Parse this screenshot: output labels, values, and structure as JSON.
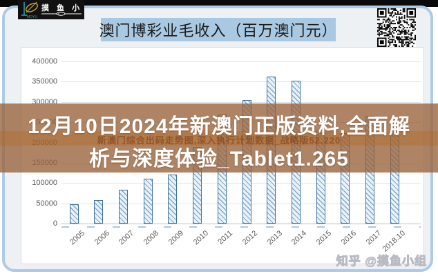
{
  "header": {
    "brand": {
      "name_spaced": "摸 鱼 小 组",
      "sub": "MOYU"
    },
    "title": "澳门博彩业毛收入（百万澳门元）"
  },
  "overlay": {
    "lines": [
      "12月10日2024年新澳门正版资料,全面解",
      "析与深度体验_Tablet1.265"
    ],
    "full_text": "12月10日2024年新澳门正版资料,全面解析与深度体验_Tablet1.265",
    "watermark": "新澳门综合出码走势图,深入执行计划数据_战略版52.220"
  },
  "footer": {
    "watermark": "知乎 @摸鱼小组"
  },
  "colors": {
    "panel_border": "#adcbe4",
    "title_highlight": "#a9c9e3",
    "banner": "rgba(151,98,58,0.78)",
    "bar_border": "#41719c",
    "bar_fill": "#e9f1f9",
    "axis_text": "#595959"
  },
  "chart_data": {
    "type": "bar",
    "title": "澳门博彩业毛收入（百万澳门元）",
    "categories": [
      "2005",
      "2006",
      "2007",
      "2008",
      "2009",
      "2010",
      "2011",
      "2012",
      "2013",
      "2014",
      "2015",
      "2016",
      "2017",
      "2018.10"
    ],
    "values": [
      47134,
      57521,
      83847,
      109826,
      120383,
      189588,
      269058,
      305235,
      361866,
      352714,
      230840,
      223210,
      265743,
      251473
    ],
    "xlabel": "",
    "ylabel": "",
    "ylim": [
      0,
      400000
    ],
    "ytick_step": 50000,
    "grid": true,
    "legend": false,
    "bar_style": "diagonal-hatch"
  }
}
